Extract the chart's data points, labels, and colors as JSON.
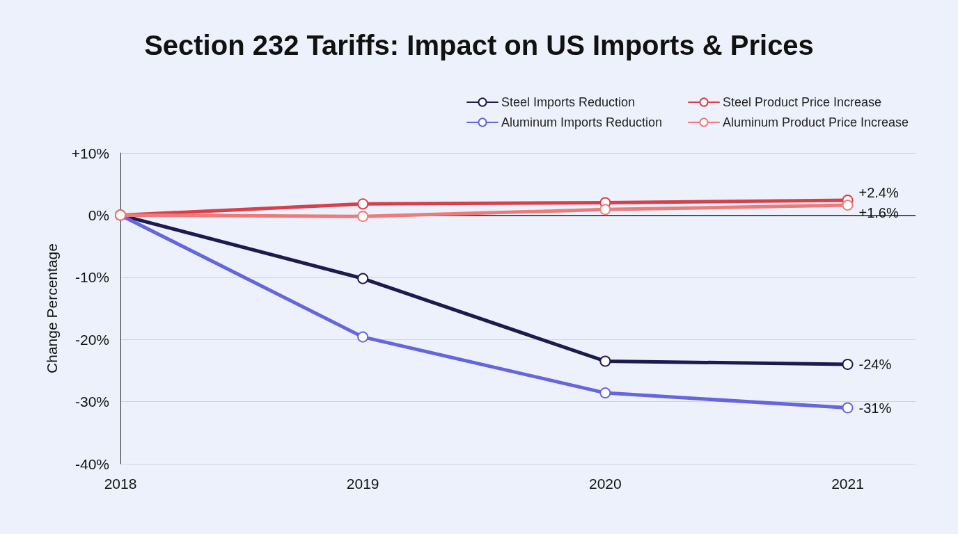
{
  "chart_data": {
    "type": "line",
    "title": "Section 232 Tariffs: Impact on US Imports & Prices",
    "ylabel": "Change Percentage",
    "x": [
      2018,
      2019,
      2020,
      2021
    ],
    "xlim": [
      2018,
      2021.28
    ],
    "xticks": [
      2018,
      2019,
      2020,
      2021
    ],
    "ylim": [
      -40,
      10
    ],
    "yticks": [
      {
        "value": -40,
        "label": "-40%"
      },
      {
        "value": -30,
        "label": "-30%"
      },
      {
        "value": -20,
        "label": "-20%"
      },
      {
        "value": -10,
        "label": "-10%"
      },
      {
        "value": 0,
        "label": "0%"
      },
      {
        "value": 10,
        "label": "+10%"
      }
    ],
    "series": [
      {
        "name": "Steel Imports Reduction",
        "color": "#1c1b4d",
        "values": [
          0,
          -10.2,
          -23.5,
          -24
        ],
        "value_labels": [
          null,
          null,
          null,
          "-24%"
        ]
      },
      {
        "name": "Aluminum Imports Reduction",
        "color": "#6565de",
        "values": [
          0,
          -19.6,
          -28.6,
          -31
        ],
        "value_labels": [
          null,
          null,
          null,
          "-31%"
        ]
      },
      {
        "name": "Steel Product Price Increase",
        "color": "#d7404a",
        "values": [
          0,
          1.8,
          2.0,
          2.4
        ],
        "value_labels": [
          null,
          null,
          null,
          "+2.4%"
        ]
      },
      {
        "name": "Aluminum Product Price Increase",
        "color": "#ee7b7b",
        "values": [
          0,
          -0.2,
          0.9,
          1.6
        ],
        "value_labels": [
          null,
          null,
          null,
          "+1.6%"
        ]
      }
    ],
    "ref_lines": [
      {
        "axis": "y",
        "value": 0,
        "color": "#222222"
      }
    ],
    "grid": "y",
    "legend": "top right",
    "marker": "circle",
    "line_style": "solid"
  }
}
